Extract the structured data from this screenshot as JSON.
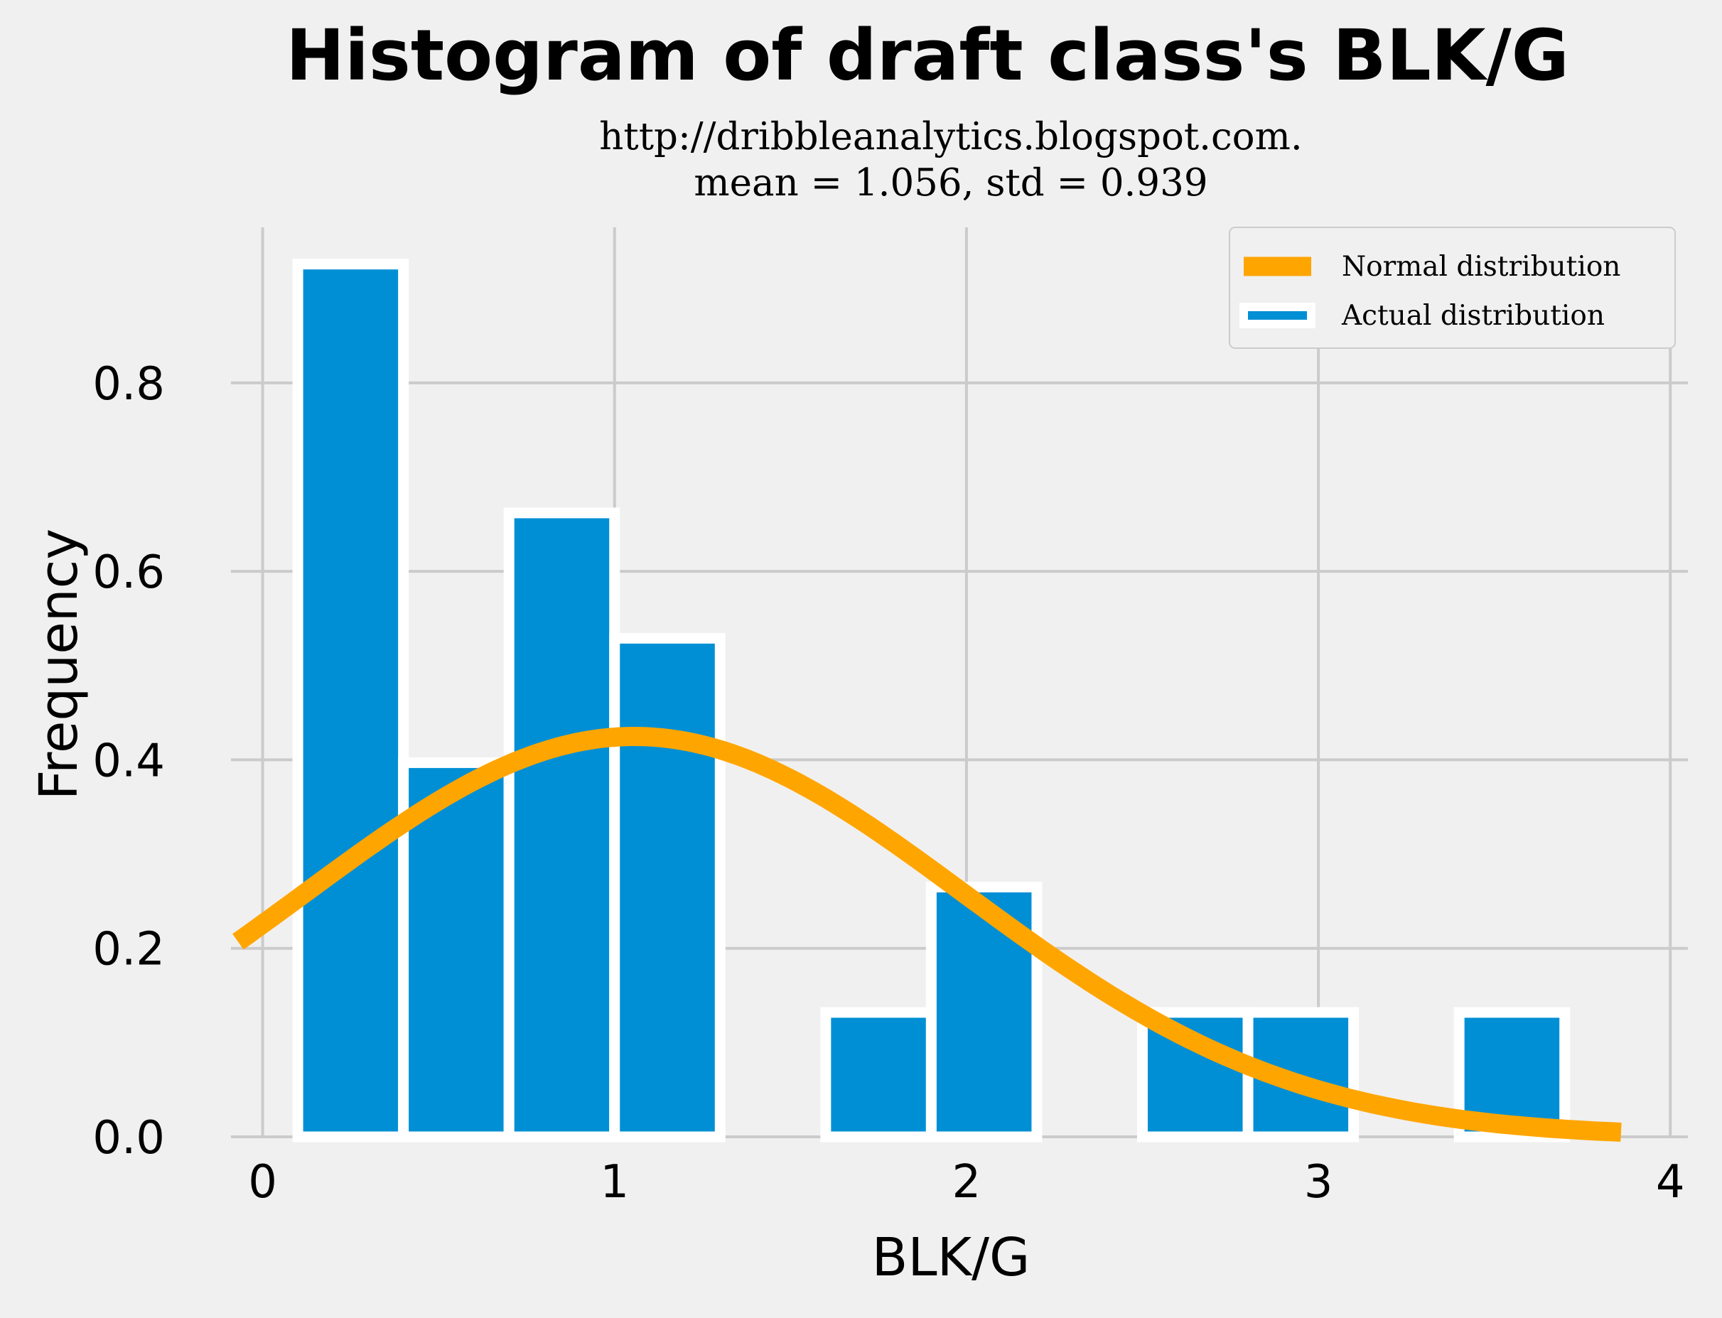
{
  "chart_data": {
    "type": "bar",
    "title": "Histogram of draft class's BLK/G",
    "subtitle_lines": [
      "http://dribbleanalytics.blogspot.com.",
      "mean = 1.056, std = 0.939"
    ],
    "xlabel": "BLK/G",
    "ylabel": "Frequency",
    "xlim": [
      -0.09,
      4.05
    ],
    "ylim": [
      0.0,
      0.965
    ],
    "xticks": [
      0,
      1,
      2,
      3,
      4
    ],
    "xtick_labels": [
      "0",
      "1",
      "2",
      "3",
      "4"
    ],
    "yticks": [
      0.0,
      0.2,
      0.4,
      0.6,
      0.8
    ],
    "ytick_labels": [
      "0.0",
      "0.2",
      "0.4",
      "0.6",
      "0.8"
    ],
    "grid": true,
    "legend_position": "top-right",
    "bins": {
      "start": 0.1,
      "width": 0.3,
      "values": [
        0.926,
        0.397,
        0.662,
        0.529,
        0.0,
        0.132,
        0.265,
        0.0,
        0.132,
        0.132,
        0.0,
        0.132
      ]
    },
    "normal_curve": {
      "mean": 1.056,
      "std": 0.939,
      "x_range": [
        -0.07,
        3.86
      ]
    },
    "series": [
      {
        "name": "Normal distribution",
        "kind": "line",
        "color": "#ffa500"
      },
      {
        "name": "Actual distribution",
        "kind": "bar",
        "color": "#008fd5"
      }
    ],
    "colors": {
      "background": "#f0f0f0",
      "grid": "#cbcbcb",
      "bar_edge": "#ffffff"
    }
  }
}
